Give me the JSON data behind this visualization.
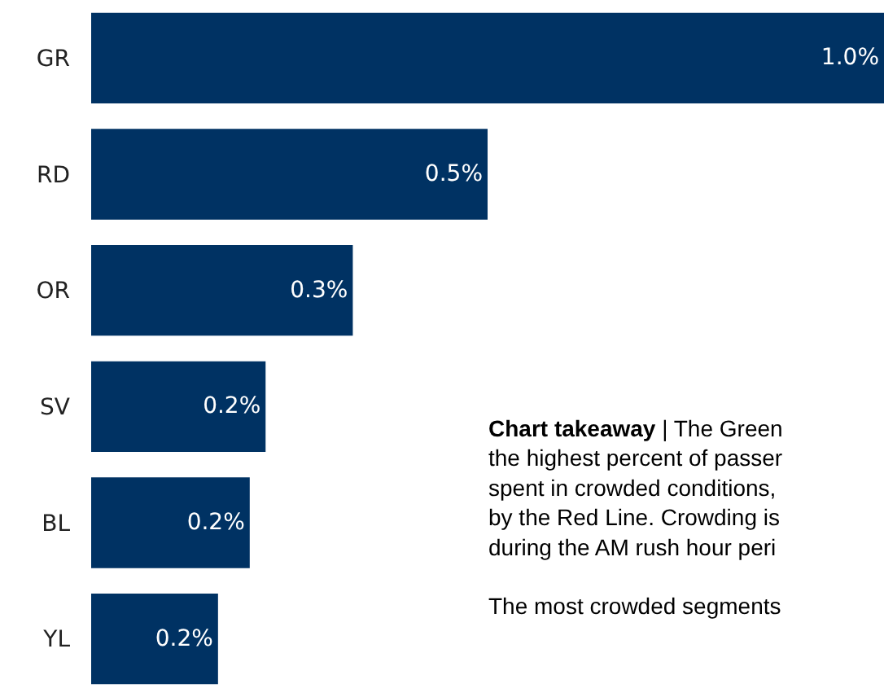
{
  "chart_data": {
    "type": "bar",
    "orientation": "horizontal",
    "categories": [
      "GR",
      "RD",
      "OR",
      "SV",
      "BL",
      "YL"
    ],
    "values": [
      1.0,
      0.5,
      0.33,
      0.22,
      0.2,
      0.16
    ],
    "value_labels": [
      "1.0%",
      "0.5%",
      "0.3%",
      "0.2%",
      "0.2%",
      "0.2%"
    ],
    "color": "#003263",
    "annotations": [
      "Chart takeaway",
      "| The Green\nthe highest percent of passer\nspent in crowded conditions,\nby the Red Line. Crowding is\nduring the AM rush hour peri\n\nThe most crowded segments"
    ]
  }
}
